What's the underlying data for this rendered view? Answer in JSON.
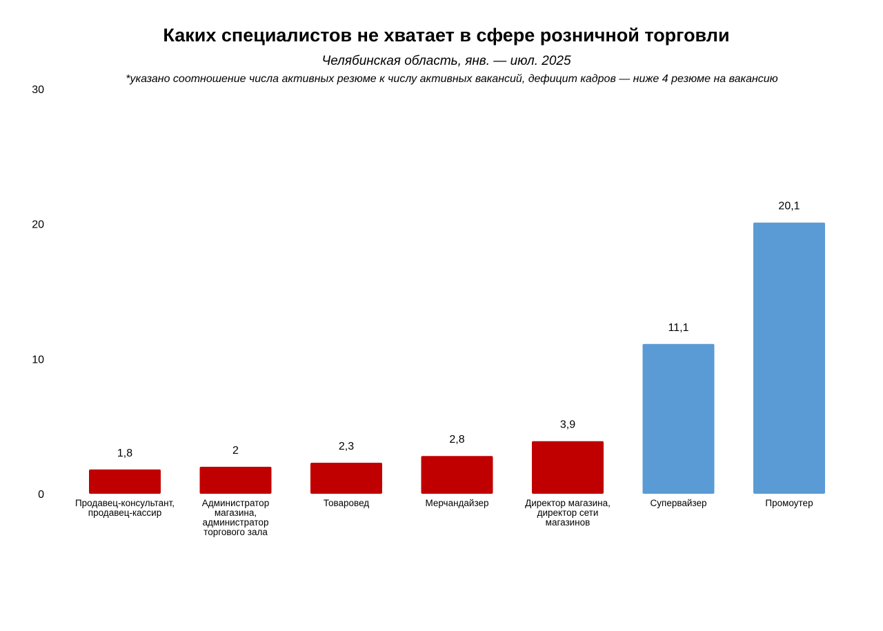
{
  "header": {
    "title": "Каких специалистов не хватает в сфере розничной торговли",
    "subtitle": "Челябинская область, янв. — июл. 2025",
    "note": "*указано соотношение числа активных резюме к числу активных вакансий, дефицит кадров — ниже 4 резюме на вакансию"
  },
  "chart_data": {
    "type": "bar",
    "title": "Каких специалистов не хватает в сфере розничной торговли",
    "subtitle": "Челябинская область, янв. — июл. 2025",
    "xlabel": "",
    "ylabel": "",
    "ylim": [
      0,
      30
    ],
    "yticks": [
      "0",
      "10",
      "20",
      "30"
    ],
    "grid": false,
    "categories": [
      [
        "Продавец-консультант,",
        "продавец-кассир"
      ],
      [
        "Администратор",
        "магазина,",
        "администратор",
        "торгового зала"
      ],
      [
        "Товаровед"
      ],
      [
        "Мерчандайзер"
      ],
      [
        "Директор магазина,",
        "директор сети",
        "магазинов"
      ],
      [
        "Супервайзер"
      ],
      [
        "Промоутер"
      ]
    ],
    "values": [
      1.8,
      2,
      2.3,
      2.8,
      3.9,
      11.1,
      20.1
    ],
    "value_labels": [
      "1,8",
      "2",
      "2,3",
      "2,8",
      "3,9",
      "11,1",
      "20,1"
    ],
    "colors": [
      "#c00000",
      "#c00000",
      "#c00000",
      "#c00000",
      "#c00000",
      "#5b9bd5",
      "#5b9bd5"
    ]
  }
}
